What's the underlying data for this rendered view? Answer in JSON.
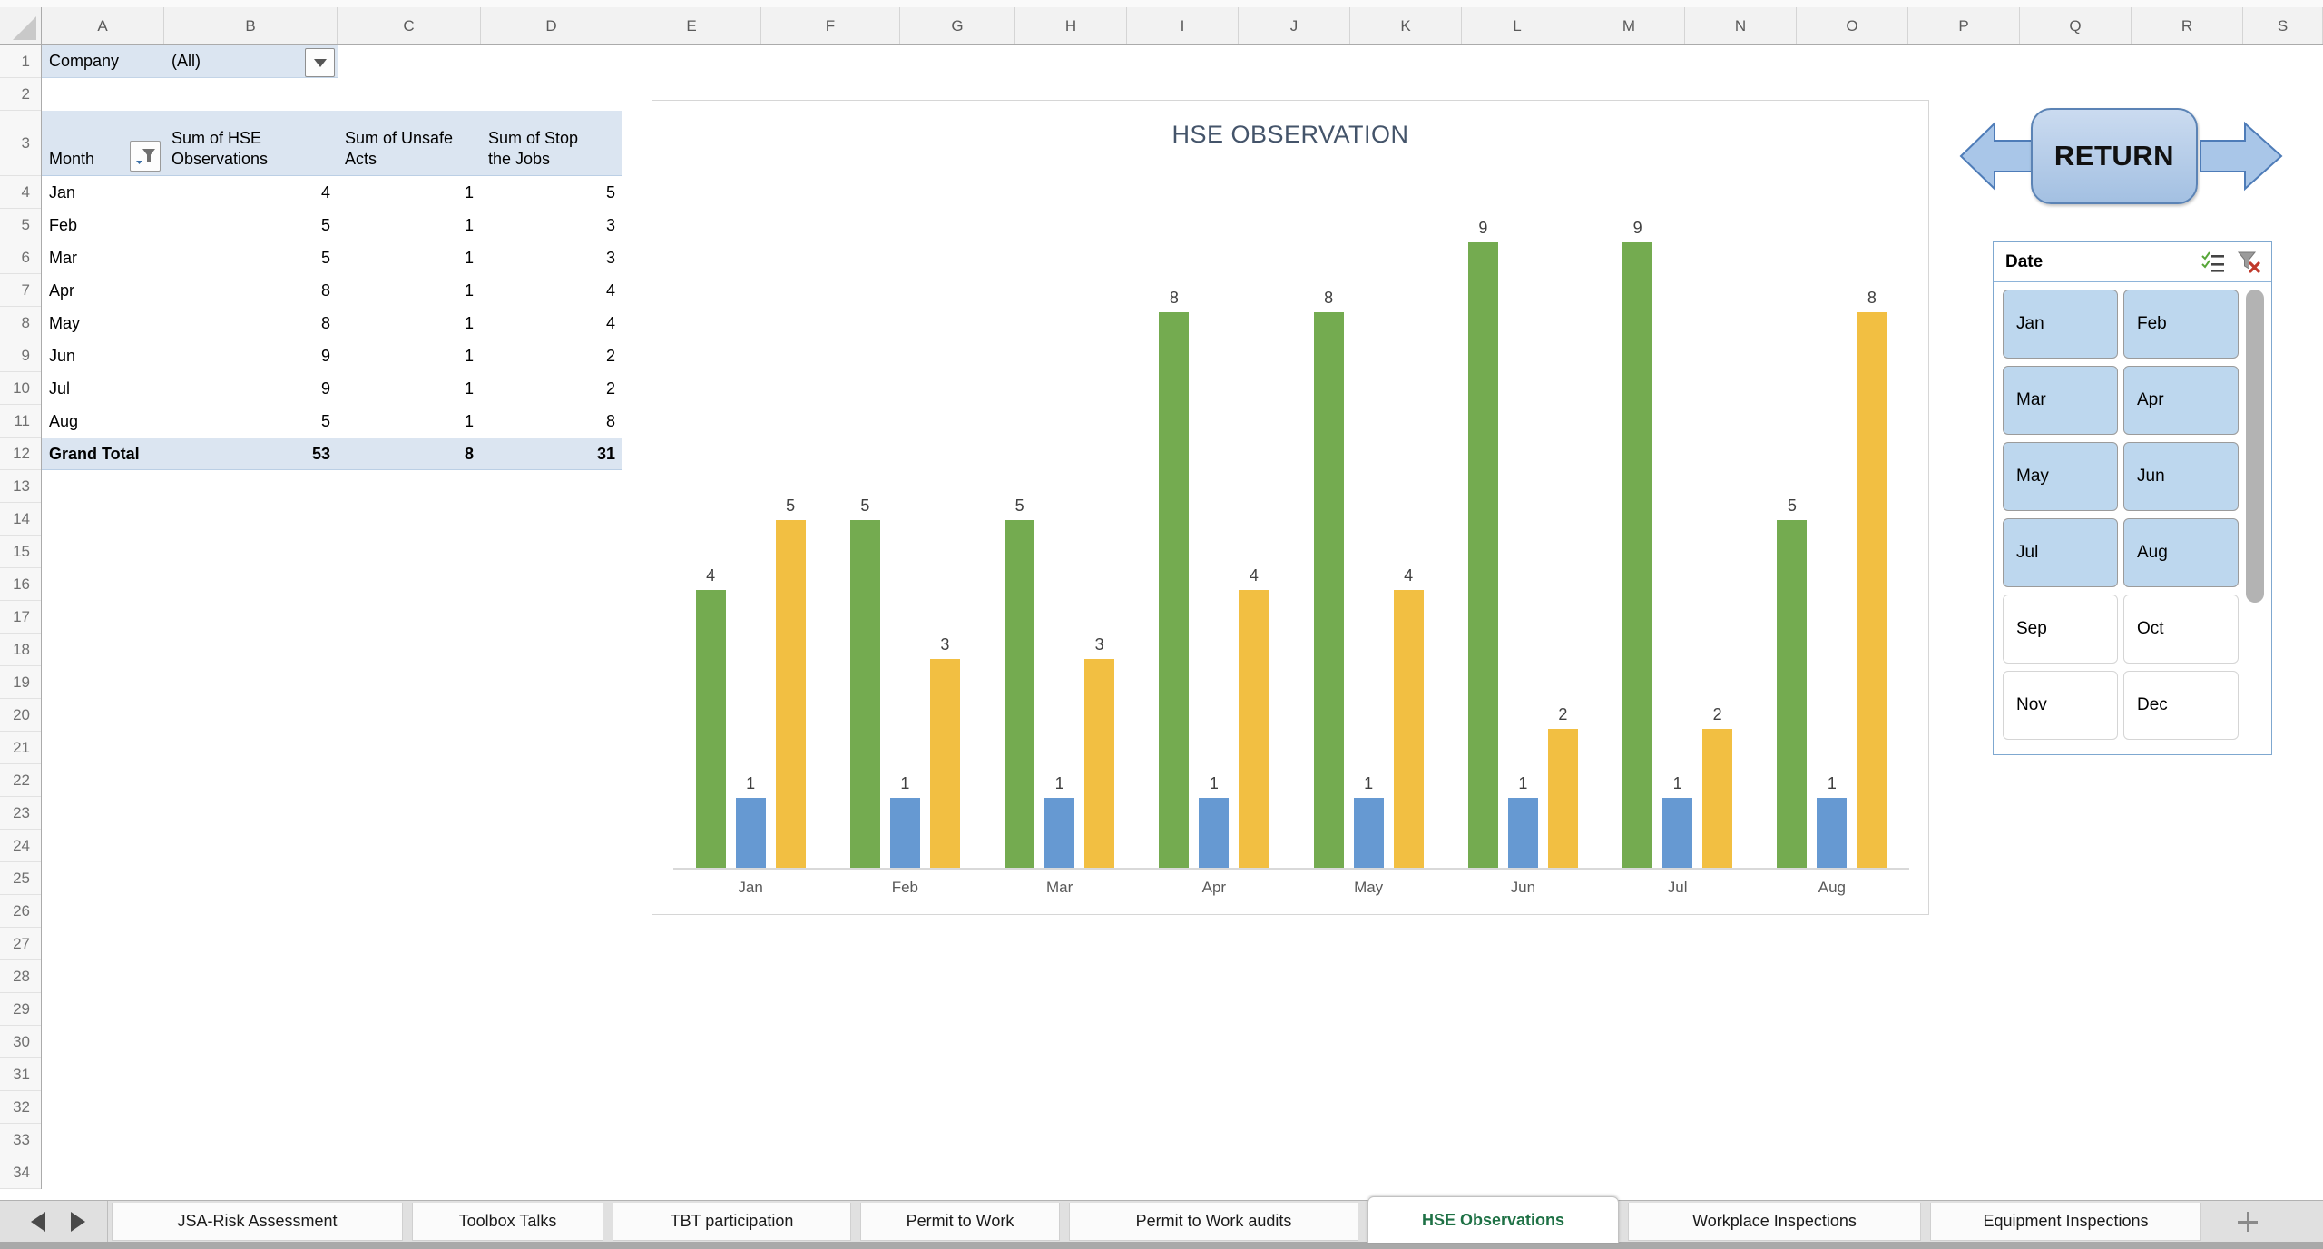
{
  "grid": {
    "columns": [
      "A",
      "B",
      "C",
      "D",
      "E",
      "F",
      "G",
      "H",
      "I",
      "J",
      "K",
      "L",
      "M",
      "N",
      "O",
      "P",
      "Q",
      "R",
      "S"
    ],
    "row_numbers": [
      1,
      2,
      3,
      4,
      5,
      6,
      7,
      8,
      9,
      10,
      11,
      12,
      13,
      14,
      15,
      16,
      17,
      18,
      19,
      20,
      21,
      22,
      23,
      24,
      25,
      26,
      27,
      28,
      29,
      30,
      31,
      32,
      33,
      34
    ]
  },
  "report_filter": {
    "label": "Company",
    "value": "(All)"
  },
  "pivot_table": {
    "col_headers": [
      "Month",
      "Sum of HSE\nObservations",
      "Sum of Unsafe\nActs",
      "Sum of Stop\nthe Jobs"
    ],
    "rows": [
      [
        "Jan",
        4,
        1,
        5
      ],
      [
        "Feb",
        5,
        1,
        3
      ],
      [
        "Mar",
        5,
        1,
        3
      ],
      [
        "Apr",
        8,
        1,
        4
      ],
      [
        "May",
        8,
        1,
        4
      ],
      [
        "Jun",
        9,
        1,
        2
      ],
      [
        "Jul",
        9,
        1,
        2
      ],
      [
        "Aug",
        5,
        1,
        8
      ]
    ],
    "grand_total": [
      "Grand Total",
      53,
      8,
      31
    ]
  },
  "chart_data": {
    "type": "bar",
    "title": "HSE OBSERVATION",
    "title_color": "#44546A",
    "categories": [
      "Jan",
      "Feb",
      "Mar",
      "Apr",
      "May",
      "Jun",
      "Jul",
      "Aug"
    ],
    "series": [
      {
        "name": "Sum of HSE Observations",
        "color": "#74AB50",
        "values": [
          4,
          5,
          5,
          8,
          8,
          9,
          9,
          5
        ]
      },
      {
        "name": "Sum of Unsafe Acts",
        "color": "#6699D2",
        "values": [
          1,
          1,
          1,
          1,
          1,
          1,
          1,
          1
        ]
      },
      {
        "name": "Sum of Stop the Jobs",
        "color": "#F2BF42",
        "values": [
          5,
          3,
          3,
          4,
          4,
          2,
          2,
          8
        ]
      }
    ],
    "ylim": [
      0,
      9
    ],
    "data_labels": true,
    "legend": "none",
    "gridlines": false
  },
  "nav_shapes": {
    "return_label": "RETURN"
  },
  "slicer": {
    "title": "Date",
    "icons": [
      "multi-select",
      "clear-filter"
    ],
    "buttons": [
      {
        "label": "Jan",
        "selected": true
      },
      {
        "label": "Feb",
        "selected": true
      },
      {
        "label": "Mar",
        "selected": true
      },
      {
        "label": "Apr",
        "selected": true
      },
      {
        "label": "May",
        "selected": true
      },
      {
        "label": "Jun",
        "selected": true
      },
      {
        "label": "Jul",
        "selected": true
      },
      {
        "label": "Aug",
        "selected": true
      },
      {
        "label": "Sep",
        "selected": false
      },
      {
        "label": "Oct",
        "selected": false
      },
      {
        "label": "Nov",
        "selected": false
      },
      {
        "label": "Dec",
        "selected": false
      }
    ]
  },
  "sheet_bar": {
    "tabs": [
      {
        "label": "JSA-Risk Assessment",
        "active": false
      },
      {
        "label": "Toolbox Talks",
        "active": false
      },
      {
        "label": "TBT participation",
        "active": false
      },
      {
        "label": "Permit to Work",
        "active": false
      },
      {
        "label": "Permit to Work audits",
        "active": false
      },
      {
        "label": "HSE Observations",
        "active": true
      },
      {
        "label": "Workplace Inspections",
        "active": false
      },
      {
        "label": "Equipment Inspections",
        "active": false
      }
    ],
    "add_label": "+"
  }
}
